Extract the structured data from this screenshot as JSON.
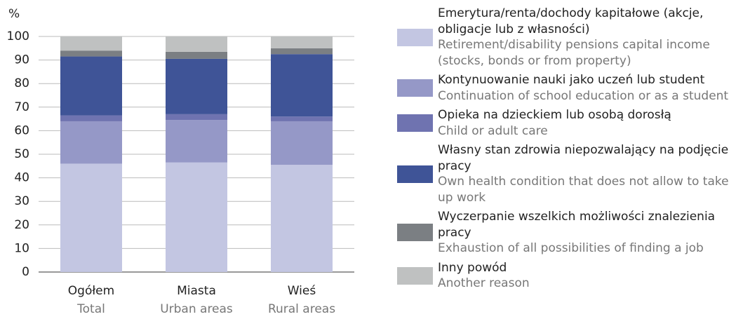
{
  "chart_data": {
    "type": "stacked_bar",
    "y_label": "%",
    "categories": [
      "Ogółem",
      "Miasta",
      "Wieś"
    ],
    "categories_en": [
      "Total",
      "Urban areas",
      "Rural areas"
    ],
    "ylim": [
      0,
      100
    ],
    "yticks": [
      0,
      10,
      20,
      30,
      40,
      50,
      60,
      70,
      80,
      90,
      100
    ],
    "grid": true,
    "series": [
      {
        "name": "Emerytura/renta/dochody kapitałowe (akcje, obligacje lub z własności)",
        "name_en": "Retirement/disability pensions capital income (stocks, bonds or from property)",
        "color": "#c3c6e2",
        "values": [
          46,
          46.5,
          45.5
        ]
      },
      {
        "name": "Kontynuowanie nauki jako uczeń lub student",
        "name_en": "Continuation of school education or as a student",
        "color": "#9598c7",
        "values": [
          18,
          18,
          18.5
        ]
      },
      {
        "name": "Opieka na dzieckiem lub osobą dorosłą",
        "name_en": "Child or adult care",
        "color": "#6f73b0",
        "values": [
          2.5,
          2.5,
          2
        ]
      },
      {
        "name": "Własny stan zdrowia niepozwalający na podjęcie pracy",
        "name_en": "Own health condition that does not allow to take up work",
        "color": "#3f5497",
        "values": [
          25,
          23.5,
          26.5
        ]
      },
      {
        "name": "Wyczerpanie wszelkich możliwości znalezienia pracy",
        "name_en": "Exhaustion of all possibilities of finding a job",
        "color": "#7b7f83",
        "values": [
          2.5,
          3,
          2.5
        ]
      },
      {
        "name": "Inny powód",
        "name_en": "Another reason",
        "color": "#bfc1c1",
        "values": [
          6,
          6.5,
          5
        ]
      }
    ]
  }
}
